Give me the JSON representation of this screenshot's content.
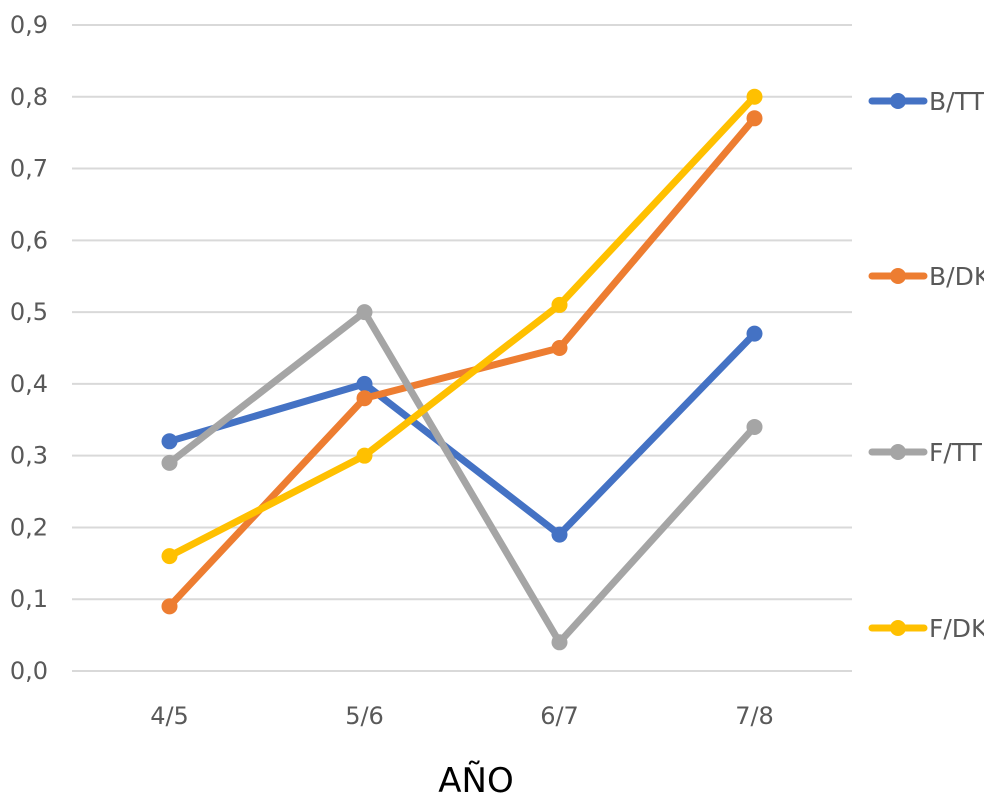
{
  "chart_data": {
    "type": "line",
    "title": "",
    "xlabel": "AÑO",
    "ylabel": "",
    "categories": [
      "4/5",
      "5/6",
      "6/7",
      "7/8"
    ],
    "ylim": [
      0,
      0.9
    ],
    "yticks": [
      "0,0",
      "0,1",
      "0,2",
      "0,3",
      "0,4",
      "0,5",
      "0,6",
      "0,7",
      "0,8",
      "0,9"
    ],
    "grid": true,
    "legend_position": "right",
    "series": [
      {
        "name": "B/TT",
        "color": "#4472C4",
        "values": [
          0.32,
          0.4,
          0.19,
          0.47
        ]
      },
      {
        "name": "B/DK",
        "color": "#ED7D31",
        "values": [
          0.09,
          0.38,
          0.45,
          0.77
        ]
      },
      {
        "name": "F/TT",
        "color": "#A5A5A5",
        "values": [
          0.29,
          0.5,
          0.04,
          0.34
        ]
      },
      {
        "name": "F/DK",
        "color": "#FFC000",
        "values": [
          0.16,
          0.3,
          0.51,
          0.8
        ]
      }
    ]
  }
}
